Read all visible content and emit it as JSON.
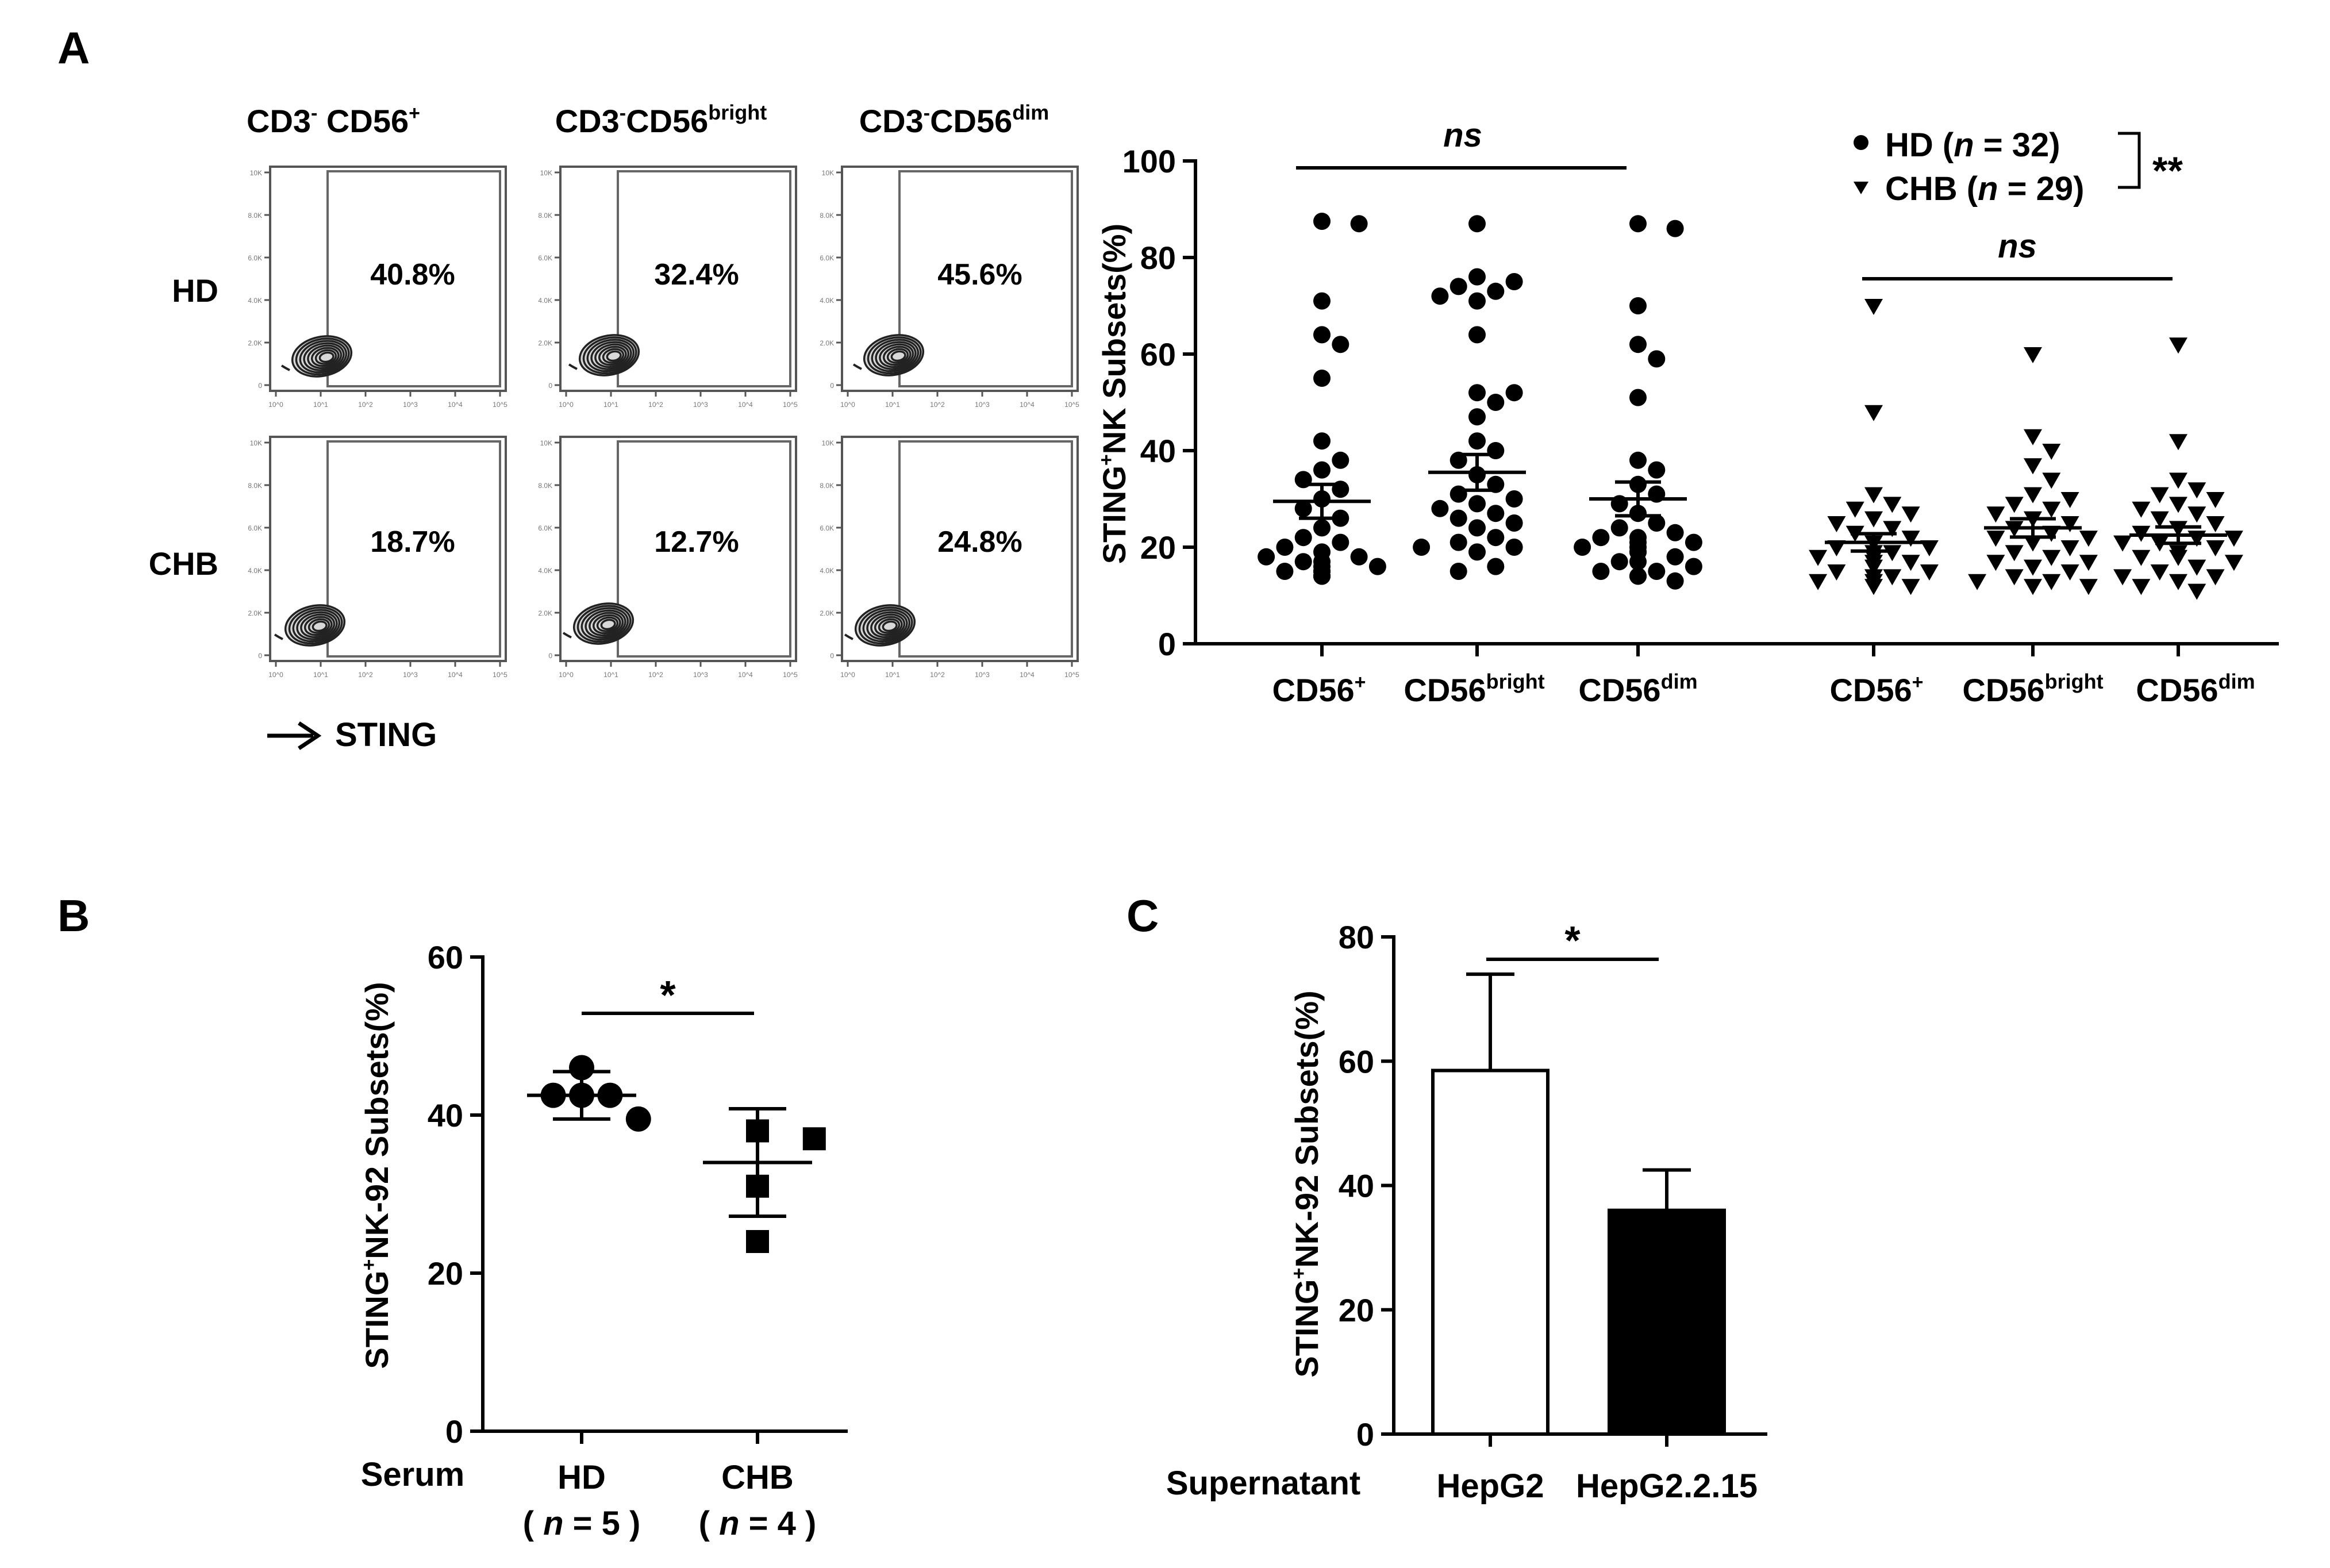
{
  "panel_letters": {
    "a": "A",
    "b": "B",
    "c": "C"
  },
  "flow": {
    "columns": [
      {
        "main": "CD3",
        "sup": "-",
        "main2": " CD56",
        "sup2": "+"
      },
      {
        "main": "CD3",
        "sup": "-",
        "main2": "CD56",
        "sup2": "bright"
      },
      {
        "main": "CD3",
        "sup": "-",
        "main2": "CD56",
        "sup2": "dim"
      }
    ],
    "rows": [
      "HD",
      "CHB"
    ],
    "percentages": [
      [
        "40.8%",
        "32.4%",
        "45.6%"
      ],
      [
        "18.7%",
        "12.7%",
        "24.8%"
      ]
    ],
    "x_axis_label": "STING",
    "y_tick_labels": [
      "10K",
      "8.0K",
      "6.0K",
      "4.0K",
      "2.0K",
      "0"
    ],
    "x_tick_labels": [
      "10^0",
      "10^1",
      "10^2",
      "10^3",
      "10^4",
      "10^5"
    ]
  },
  "chart_data": [
    {
      "id": "A",
      "type": "scatter",
      "title": "",
      "ylabel_main": "STING",
      "ylabel_sup": "+",
      "ylabel_rest": "NK Subsets(%)",
      "ylim": [
        0,
        100
      ],
      "yticks": [
        0,
        20,
        40,
        60,
        80,
        100
      ],
      "categories": [
        {
          "main": "CD56",
          "sup": "+"
        },
        {
          "main": "CD56",
          "sup": "bright"
        },
        {
          "main": "CD56",
          "sup": "dim"
        }
      ],
      "legend": {
        "hd": {
          "name": "HD",
          "n_label": "n",
          "n_value": " = 32)"
        },
        "chb": {
          "name": "CHB",
          "n_label": "n",
          "n_value": " = 29)"
        },
        "open_paren": " (",
        "significance": "**"
      },
      "annotations": {
        "hd_bracket": "ns",
        "chb_bracket": "ns"
      },
      "series": [
        {
          "name": "HD",
          "marker": "circle",
          "groups": [
            {
              "category": "CD56+",
              "mean": 29.5,
              "sem": 3.5,
              "values": [
                87,
                87.5,
                71,
                64,
                62,
                55,
                42,
                38,
                36,
                34,
                32,
                30,
                28,
                26,
                24,
                22,
                21,
                20,
                19,
                18,
                18,
                17,
                17,
                16,
                16,
                15,
                15,
                15,
                14,
                14,
                14,
                14
              ]
            },
            {
              "category": "CD56bright",
              "mean": 35.5,
              "sem": 3.7,
              "values": [
                87,
                76,
                75,
                74,
                73,
                72,
                71,
                64,
                52,
                52,
                50,
                47,
                42,
                40,
                38,
                35,
                33,
                31,
                30,
                29,
                28,
                27,
                26,
                25,
                24,
                22,
                21,
                20,
                20,
                19,
                16,
                15
              ]
            },
            {
              "category": "CD56dim",
              "mean": 30.0,
              "sem": 3.5,
              "values": [
                87,
                86,
                70,
                62,
                59,
                51,
                38,
                36,
                33,
                31,
                29,
                27,
                25,
                24,
                23,
                22,
                22,
                21,
                21,
                20,
                20,
                19,
                19,
                18,
                17,
                17,
                16,
                15,
                15,
                14,
                14,
                13
              ]
            }
          ]
        },
        {
          "name": "CHB",
          "marker": "triangle-down",
          "groups": [
            {
              "category": "CD56+",
              "mean": 21.0,
              "sem": 1.8,
              "values": [
                70,
                48,
                31,
                29,
                28,
                27,
                26,
                25,
                24,
                23,
                22,
                21,
                20,
                20,
                19,
                19,
                18,
                18,
                17,
                17,
                16,
                15,
                15,
                14,
                14,
                13,
                13,
                12,
                12
              ]
            },
            {
              "category": "CD56bright",
              "mean": 24.0,
              "sem": 1.9,
              "values": [
                60,
                43,
                40,
                37,
                34,
                31,
                30,
                29,
                28,
                27,
                26,
                25,
                24,
                23,
                22,
                22,
                21,
                20,
                19,
                18,
                17,
                17,
                16,
                15,
                14,
                13,
                13,
                12,
                12
              ]
            },
            {
              "category": "CD56dim",
              "mean": 22.5,
              "sem": 1.7,
              "values": [
                62,
                42,
                34,
                32,
                31,
                30,
                29,
                28,
                27,
                26,
                25,
                24,
                23,
                22,
                22,
                21,
                21,
                20,
                19,
                18,
                18,
                17,
                16,
                15,
                14,
                14,
                13,
                12,
                11
              ]
            }
          ]
        }
      ]
    },
    {
      "id": "B",
      "type": "scatter",
      "ylabel_main": "STING",
      "ylabel_sup": "+",
      "ylabel_rest": "NK-92 Subsets(%)",
      "ylim": [
        0,
        60
      ],
      "yticks": [
        0,
        20,
        40,
        60
      ],
      "row_label": "Serum",
      "significance": "*",
      "groups": [
        {
          "name": "HD",
          "n_text": "( n = 5 )",
          "n_prefix": "( ",
          "n_label": "n",
          "n_suffix": " = 5 )",
          "marker": "circle",
          "mean": 42.5,
          "sd": 3.0,
          "values": [
            46,
            42.5,
            42.5,
            42.5,
            39.5
          ]
        },
        {
          "name": "CHB",
          "n_text": "( n = 4 )",
          "n_prefix": "( ",
          "n_label": "n",
          "n_suffix": " = 4 )",
          "marker": "square",
          "mean": 34.0,
          "sd": 6.8,
          "values": [
            38,
            37,
            31,
            24
          ]
        }
      ]
    },
    {
      "id": "C",
      "type": "bar",
      "ylabel_main": "STING",
      "ylabel_sup": "+",
      "ylabel_rest": "NK-92 Subsets(%)",
      "ylim": [
        0,
        80
      ],
      "yticks": [
        0,
        20,
        40,
        60,
        80
      ],
      "row_label": "Supernatant",
      "significance": "*",
      "categories": [
        "HepG2",
        "HepG2.2.15"
      ],
      "values": [
        58.5,
        36.0
      ],
      "errors": [
        15.5,
        6.5
      ],
      "fills": [
        "#ffffff",
        "#000000"
      ]
    }
  ]
}
